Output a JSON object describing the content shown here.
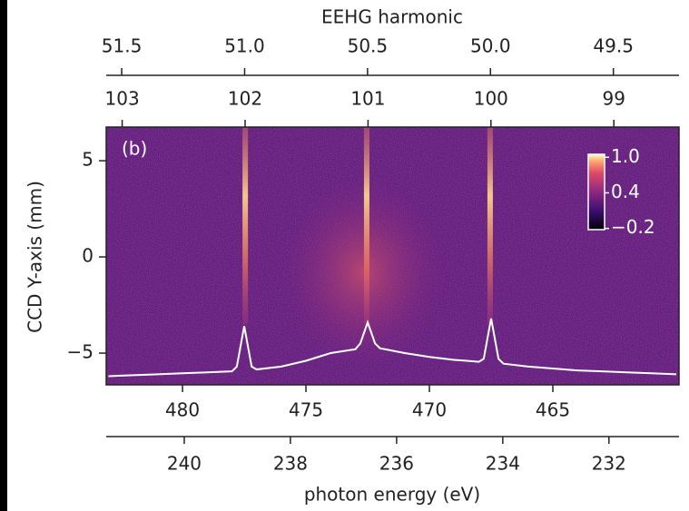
{
  "chart_data": {
    "type": "heatmap",
    "x_top_label": "EEHG harmonic",
    "x_top_lim": [
      51.563,
      49.233
    ],
    "x_top_ticks": [
      51.5,
      {
        "value": 51,
        "label": "51.0"
      },
      50.5,
      {
        "value": 50,
        "label": "50.0"
      },
      49.5
    ],
    "x_top2_lim": [
      103.13,
      98.47
    ],
    "x_top2_ticks": [
      103,
      102,
      101,
      100,
      99
    ],
    "xlim": [
      483.09,
      459.89
    ],
    "xticks": [
      480,
      475,
      470,
      465
    ],
    "x_bottom2_lim": [
      241.47,
      230.68
    ],
    "x_bottom2_ticks": [
      240,
      238,
      236,
      234,
      232
    ],
    "xlabel": "photon energy (eV)",
    "ylabel": "CCD Y-axis (mm)",
    "ylim": [
      -6.65,
      6.75
    ],
    "yticks": [
      5,
      0,
      {
        "value": -5,
        "label": "−5"
      }
    ],
    "annotation": "(b)",
    "colorbar": {
      "lim": [
        -0.22,
        1.05
      ],
      "ticks": [
        {
          "value": 1,
          "label": "1.0"
        },
        0.4,
        {
          "value": -0.2,
          "label": "−0.2"
        }
      ]
    },
    "emission_lines": [
      477.46,
      472.54,
      467.54
    ],
    "spectrum": {
      "color": "#ffffff",
      "x": [
        483,
        482,
        481,
        480,
        479,
        478,
        477.8,
        477.5,
        477.2,
        477,
        476,
        475,
        474,
        473,
        472.8,
        472.5,
        472.2,
        472,
        471,
        470,
        469,
        468,
        467.8,
        467.5,
        467.2,
        467,
        466,
        465,
        464,
        463,
        462,
        461,
        460
      ],
      "values": [
        -6.2,
        -6.15,
        -6.1,
        -6.05,
        -6.0,
        -5.95,
        -5.7,
        -3.6,
        -5.7,
        -5.85,
        -5.7,
        -5.4,
        -5.0,
        -4.8,
        -4.5,
        -3.4,
        -4.5,
        -4.75,
        -5.0,
        -5.2,
        -5.35,
        -5.45,
        -5.3,
        -3.2,
        -5.3,
        -5.55,
        -5.7,
        -5.8,
        -5.9,
        -5.95,
        -6.0,
        -6.05,
        -6.1
      ]
    }
  }
}
